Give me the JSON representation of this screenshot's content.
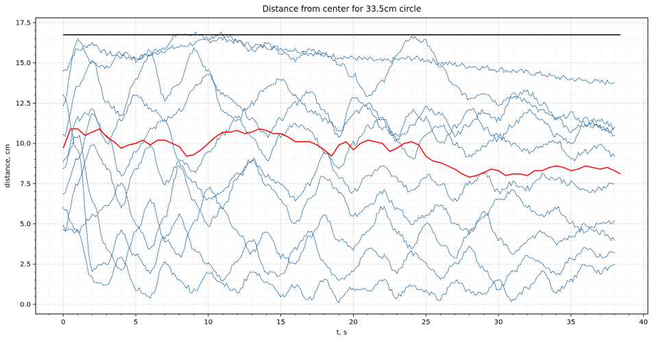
{
  "chart_data": {
    "type": "line",
    "title": "Distance from center for 33.5cm circle",
    "xlabel": "t, s",
    "ylabel": "distance, cm",
    "xlim": [
      -1.9,
      40.3
    ],
    "ylim": [
      -0.6,
      17.8
    ],
    "xticks": [
      0,
      5,
      10,
      15,
      20,
      25,
      30,
      35,
      40
    ],
    "xtick_labels": [
      "0",
      "5",
      "10",
      "15",
      "20",
      "25",
      "30",
      "35",
      "40"
    ],
    "yticks": [
      0.0,
      2.5,
      5.0,
      7.5,
      10.0,
      12.5,
      15.0,
      17.5
    ],
    "ytick_labels": [
      "0.0",
      "2.5",
      "5.0",
      "7.5",
      "10.0",
      "12.5",
      "15.0",
      "17.5"
    ],
    "grid": true,
    "minor_grid": true,
    "colors": {
      "traces": "#3b78a8",
      "mean": "#ff0000",
      "radius": "#000000",
      "grid": "#c8c8c8"
    },
    "series": [
      {
        "role": "radius",
        "x": [
          0,
          38.4
        ],
        "y": [
          16.75,
          16.75
        ]
      },
      {
        "role": "mean",
        "x": [
          0,
          0.5,
          1,
          1.5,
          2,
          2.5,
          3,
          3.5,
          4,
          4.5,
          5,
          5.5,
          6,
          6.5,
          7,
          7.5,
          8,
          8.5,
          9,
          9.5,
          10,
          10.5,
          11,
          11.5,
          12,
          12.5,
          13,
          13.5,
          14,
          14.5,
          15,
          15.5,
          16,
          16.5,
          17,
          17.5,
          18,
          18.5,
          19,
          19.5,
          20,
          20.5,
          21,
          21.5,
          22,
          22.5,
          23,
          23.5,
          24,
          24.5,
          25,
          25.5,
          26,
          26.5,
          27,
          27.5,
          28,
          28.5,
          29,
          29.5,
          30,
          30.5,
          31,
          31.5,
          32,
          32.5,
          33,
          33.5,
          34,
          34.5,
          35,
          35.5,
          36,
          36.5,
          37,
          37.5,
          38,
          38.4
        ],
        "y": [
          9.7,
          10.9,
          10.9,
          10.5,
          10.7,
          10.9,
          10.4,
          10.1,
          9.7,
          9.9,
          10.0,
          10.2,
          9.9,
          10.2,
          10.2,
          10.0,
          9.8,
          9.2,
          9.3,
          9.6,
          10.0,
          10.4,
          10.7,
          10.7,
          10.8,
          10.6,
          10.7,
          10.9,
          10.8,
          10.6,
          10.6,
          10.4,
          10.1,
          10.1,
          10.1,
          9.9,
          9.6,
          9.2,
          9.9,
          10.1,
          9.6,
          10.0,
          10.2,
          10.1,
          10.0,
          9.5,
          9.7,
          10.0,
          10.1,
          9.9,
          9.2,
          8.9,
          8.8,
          8.6,
          8.4,
          8.1,
          7.9,
          8.0,
          8.2,
          8.4,
          8.3,
          8.0,
          8.1,
          8.1,
          8.0,
          8.3,
          8.3,
          8.5,
          8.6,
          8.5,
          8.3,
          8.4,
          8.6,
          8.5,
          8.4,
          8.5,
          8.3,
          8.1
        ]
      }
    ],
    "traces_t": [
      0,
      1,
      2,
      3,
      4,
      5,
      6,
      7,
      8,
      9,
      10,
      11,
      12,
      13,
      14,
      15,
      16,
      17,
      18,
      19,
      20,
      21,
      22,
      23,
      24,
      25,
      26,
      27,
      28,
      29,
      30,
      31,
      32,
      33,
      34,
      35,
      36,
      37,
      38
    ],
    "traces": [
      [
        14.5,
        15.8,
        16.2,
        15.6,
        15.4,
        15.3,
        15.5,
        15.8,
        16.0,
        16.2,
        16.4,
        16.5,
        16.3,
        16.1,
        16.0,
        15.9,
        15.8,
        15.6,
        15.5,
        15.4,
        15.3,
        15.2,
        15.1,
        15.2,
        15.3,
        15.2,
        15.0,
        14.9,
        14.8,
        14.7,
        14.6,
        14.5,
        14.4,
        14.3,
        14.1,
        14.0,
        13.9,
        13.8,
        13.8
      ],
      [
        12.5,
        16.5,
        15.0,
        14.8,
        15.6,
        15.2,
        15.7,
        16.0,
        16.9,
        16.8,
        16.5,
        16.8,
        16.4,
        15.8,
        16.2,
        15.6,
        15.2,
        15.9,
        15.5,
        15.0,
        14.2,
        13.0,
        13.8,
        15.5,
        16.6,
        16.3,
        14.8,
        13.5,
        12.8,
        13.2,
        12.5,
        13.0,
        12.6,
        12.0,
        11.5,
        11.8,
        11.2,
        11.0,
        10.8
      ],
      [
        10.5,
        13.5,
        15.2,
        12.5,
        11.8,
        14.0,
        15.5,
        12.8,
        13.8,
        15.8,
        14.5,
        12.0,
        11.5,
        12.5,
        13.5,
        14.0,
        13.0,
        12.0,
        11.5,
        10.8,
        11.8,
        12.5,
        11.5,
        10.2,
        11.0,
        12.2,
        11.8,
        10.5,
        11.2,
        12.0,
        11.5,
        12.8,
        13.2,
        12.5,
        11.5,
        10.8,
        11.2,
        11.5,
        11.0
      ],
      [
        8.5,
        11.5,
        12.0,
        10.0,
        11.5,
        13.0,
        12.2,
        11.5,
        12.0,
        13.5,
        14.2,
        13.0,
        12.5,
        11.5,
        10.5,
        11.5,
        12.5,
        13.2,
        12.0,
        10.5,
        12.8,
        12.2,
        11.0,
        10.5,
        12.0,
        11.5,
        10.0,
        11.0,
        12.2,
        11.0,
        10.2,
        11.2,
        12.0,
        11.5,
        10.5,
        10.0,
        11.5,
        11.0,
        10.5
      ],
      [
        7.0,
        9.0,
        11.8,
        10.5,
        8.0,
        9.5,
        10.8,
        11.5,
        9.0,
        8.2,
        9.5,
        10.5,
        11.5,
        10.5,
        9.0,
        10.5,
        11.2,
        10.8,
        9.5,
        8.5,
        10.0,
        11.0,
        11.5,
        10.2,
        9.0,
        10.5,
        11.2,
        10.0,
        9.2,
        9.8,
        10.5,
        10.0,
        9.5,
        9.8,
        10.2,
        9.0,
        9.5,
        9.8,
        9.2
      ],
      [
        4.5,
        7.5,
        10.0,
        8.5,
        6.0,
        8.5,
        9.8,
        7.5,
        8.8,
        7.5,
        6.5,
        7.0,
        8.0,
        9.0,
        8.0,
        7.5,
        6.5,
        7.5,
        9.5,
        8.0,
        7.0,
        8.0,
        8.5,
        7.8,
        7.0,
        8.0,
        7.5,
        6.5,
        7.5,
        8.2,
        7.0,
        7.5,
        7.2,
        8.0,
        7.8,
        7.5,
        7.0,
        7.2,
        7.5
      ],
      [
        6.0,
        4.5,
        5.5,
        6.0,
        7.5,
        5.0,
        3.5,
        5.5,
        8.5,
        6.5,
        5.0,
        6.0,
        7.8,
        9.0,
        7.5,
        6.5,
        5.0,
        6.5,
        8.0,
        7.0,
        5.5,
        6.0,
        7.0,
        6.0,
        5.0,
        5.5,
        6.2,
        5.0,
        4.5,
        5.5,
        6.5,
        7.0,
        6.0,
        5.5,
        6.0,
        5.0,
        4.5,
        5.0,
        5.2
      ],
      [
        8.8,
        10.5,
        6.5,
        3.5,
        2.0,
        4.5,
        6.5,
        4.0,
        3.0,
        5.0,
        7.2,
        6.0,
        4.5,
        3.2,
        4.5,
        3.0,
        2.5,
        4.2,
        5.5,
        4.0,
        3.5,
        4.5,
        6.0,
        4.5,
        3.5,
        5.0,
        3.8,
        3.0,
        4.5,
        5.8,
        4.0,
        3.2,
        4.0,
        4.5,
        3.8,
        4.2,
        5.0,
        4.5,
        4.0
      ],
      [
        13.0,
        9.5,
        2.2,
        2.5,
        4.5,
        3.0,
        2.0,
        4.2,
        5.5,
        3.5,
        2.5,
        1.5,
        2.8,
        4.0,
        2.0,
        1.8,
        3.5,
        4.5,
        2.5,
        1.5,
        2.0,
        3.5,
        3.0,
        2.0,
        3.2,
        2.5,
        1.5,
        2.5,
        3.5,
        2.2,
        1.0,
        2.0,
        3.0,
        2.5,
        1.8,
        2.8,
        3.5,
        3.0,
        3.2
      ],
      [
        4.8,
        4.5,
        1.5,
        1.2,
        3.0,
        1.0,
        0.5,
        2.5,
        1.5,
        0.8,
        2.0,
        1.2,
        0.8,
        2.0,
        1.5,
        0.5,
        1.2,
        0.3,
        1.5,
        0.2,
        1.0,
        0.8,
        1.5,
        0.5,
        1.2,
        0.8,
        0.4,
        1.5,
        0.8,
        0.6,
        1.5,
        0.2,
        1.0,
        2.0,
        0.8,
        1.5,
        2.5,
        2.0,
        2.5
      ]
    ]
  }
}
